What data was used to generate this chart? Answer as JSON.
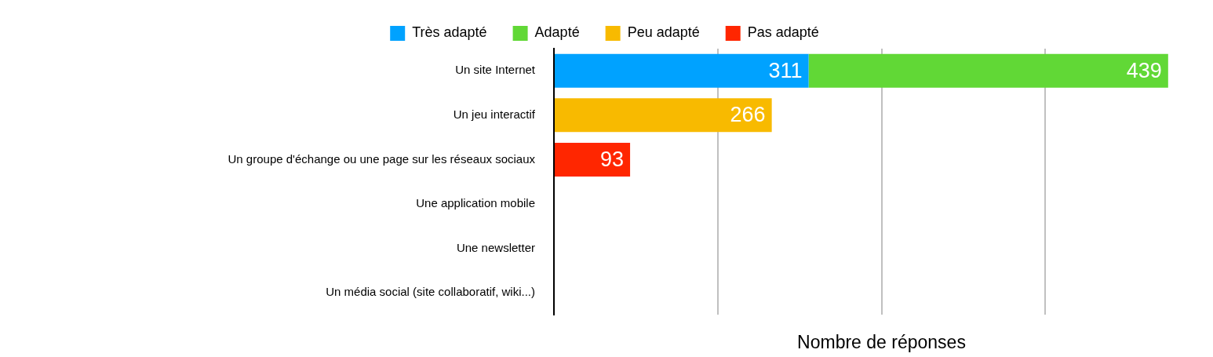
{
  "chart_data": {
    "type": "bar",
    "orientation": "horizontal",
    "stacked": true,
    "categories": [
      "Un site Internet",
      "Un jeu interactif",
      "Un groupe d'échange ou une page sur les réseaux sociaux",
      "Une application mobile",
      "Une newsletter",
      "Un média social (site collaboratif, wiki...)"
    ],
    "series": [
      {
        "name": "Très adapté",
        "color": "#00a2ff",
        "values": [
          311,
          null,
          null,
          null,
          null,
          null
        ]
      },
      {
        "name": "Adapté",
        "color": "#61d836",
        "values": [
          439,
          null,
          null,
          null,
          null,
          null
        ]
      },
      {
        "name": "Peu adapté",
        "color": "#f8ba00",
        "values": [
          null,
          266,
          null,
          null,
          null,
          null
        ]
      },
      {
        "name": "Pas adapté",
        "color": "#ff2600",
        "values": [
          null,
          null,
          93,
          null,
          null,
          null
        ]
      }
    ],
    "xlabel": "Nombre de réponses",
    "xticks": [
      {
        "value": 0,
        "label": null
      },
      {
        "value": 200,
        "label": null
      },
      {
        "value": 400,
        "label": null
      },
      {
        "value": 600,
        "label": null
      }
    ],
    "tick_labels": "y",
    "grid": "x",
    "legend": "top",
    "data_labels": true
  }
}
